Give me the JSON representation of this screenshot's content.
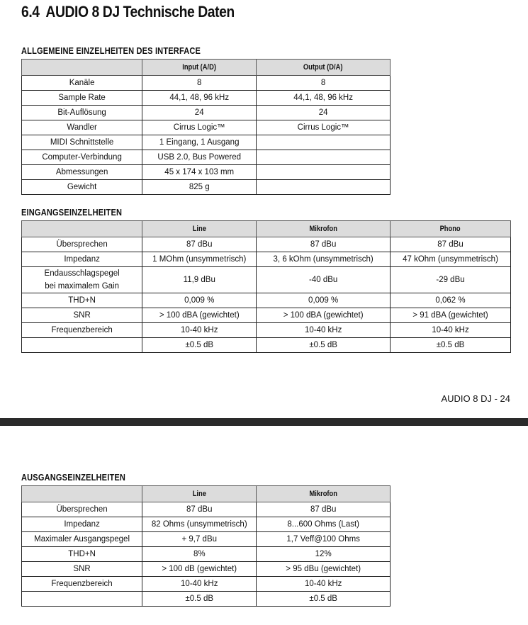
{
  "page_title": {
    "number": "6.4",
    "text": "AUDIO 8 DJ Technische Daten"
  },
  "tables": [
    {
      "heading": "ALLGEMEINE EINZELHEITEN DES INTERFACE",
      "columns": [
        "",
        "Input (A/D)",
        "Output (D/A)"
      ],
      "rows": [
        [
          "Kanäle",
          "8",
          "8"
        ],
        [
          "Sample Rate",
          "44,1, 48, 96 kHz",
          "44,1, 48, 96 kHz"
        ],
        [
          "Bit-Auflösung",
          "24",
          "24"
        ],
        [
          "Wandler",
          "Cirrus Logic™",
          "Cirrus Logic™"
        ],
        [
          "MIDI Schnittstelle",
          "1 Eingang, 1 Ausgang",
          ""
        ],
        [
          "Computer-Verbindung",
          "USB 2.0, Bus Powered",
          ""
        ],
        [
          "Abmessungen",
          "45 x 174 x 103 mm",
          ""
        ],
        [
          "Gewicht",
          "825 g",
          ""
        ]
      ]
    },
    {
      "heading": "EINGANGSEINZELHEITEN",
      "columns": [
        "",
        "Line",
        "Mikrofon",
        "Phono"
      ],
      "rows": [
        [
          "Übersprechen",
          "87 dBu",
          "87 dBu",
          "87 dBu"
        ],
        [
          "Impedanz",
          "1 MOhm (unsymmetrisch)",
          "3, 6 kOhm (unsymmetrisch)",
          "47 kOhm (unsymmetrisch)"
        ],
        [
          "Endausschlagspegel\nbei maximalem Gain",
          "11,9 dBu",
          "-40 dBu",
          "-29 dBu"
        ],
        [
          "THD+N",
          "0,009 %",
          "0,009 %",
          "0,062 %"
        ],
        [
          "SNR",
          "> 100 dBA (gewichtet)",
          "> 100 dBA (gewichtet)",
          "> 91 dBA (gewichtet)"
        ],
        [
          "Frequenzbereich",
          "10-40 kHz",
          "10-40 kHz",
          "10-40 kHz"
        ],
        [
          "",
          "±0.5 dB",
          "±0.5 dB",
          "±0.5 dB"
        ]
      ]
    },
    {
      "heading": "AUSGANGSEINZELHEITEN",
      "columns": [
        "",
        "Line",
        "Mikrofon"
      ],
      "rows": [
        [
          "Übersprechen",
          "87 dBu",
          "87 dBu"
        ],
        [
          "Impedanz",
          "82 Ohms (unsymmetrisch)",
          "8...600 Ohms (Last)"
        ],
        [
          "Maximaler Ausgangspegel",
          "+ 9,7 dBu",
          "1,7 Veff@100 Ohms"
        ],
        [
          "THD+N",
          "8%",
          "12%"
        ],
        [
          "SNR",
          "> 100 dB (gewichtet)",
          "> 95 dBu (gewichtet)"
        ],
        [
          "Frequenzbereich",
          "10-40 kHz",
          "10-40 kHz"
        ],
        [
          "",
          "±0.5 dB",
          "±0.5 dB"
        ]
      ]
    }
  ],
  "footer": {
    "page_number": "AUDIO 8 DJ - 24"
  }
}
